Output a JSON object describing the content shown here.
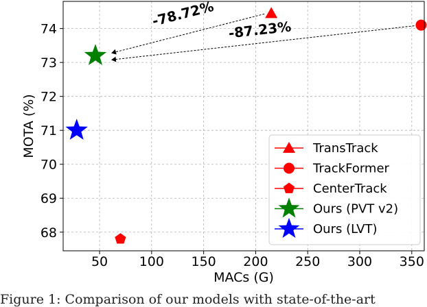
{
  "chart_data": {
    "type": "scatter",
    "title": "",
    "xlabel": "MACs (G)",
    "ylabel": "MOTA (%)",
    "xlim": [
      15,
      362
    ],
    "ylim": [
      67.45,
      74.8
    ],
    "xticks": [
      50,
      100,
      150,
      200,
      250,
      300,
      350
    ],
    "yticks": [
      68,
      69,
      70,
      71,
      72,
      73,
      74
    ],
    "grid": true,
    "legend_position": "bottom-right",
    "series": [
      {
        "name": "TransTrack",
        "marker": "triangle",
        "color": "#ff0000",
        "x": [
          215
        ],
        "y": [
          74.45
        ]
      },
      {
        "name": "TrackFormer",
        "marker": "circle",
        "color": "#ff0000",
        "x": [
          359
        ],
        "y": [
          74.1
        ]
      },
      {
        "name": "CenterTrack",
        "marker": "pentagon",
        "color": "#ff0000",
        "x": [
          70
        ],
        "y": [
          67.8
        ]
      },
      {
        "name": "Ours (PVT v2)",
        "marker": "star",
        "color": "#008000",
        "x": [
          46
        ],
        "y": [
          73.2
        ]
      },
      {
        "name": "Ours (LVT)",
        "marker": "star",
        "color": "#0000ff",
        "x": [
          28
        ],
        "y": [
          71.0
        ]
      }
    ],
    "annotations": [
      {
        "text": "-78.72%",
        "from": [
          215,
          74.45
        ],
        "to": [
          46,
          73.2
        ]
      },
      {
        "text": "-87.23%",
        "from": [
          359,
          74.1
        ],
        "to": [
          46,
          73.2
        ]
      }
    ]
  },
  "caption": "Figure 1:  Comparison of our models with state-of-the-art"
}
